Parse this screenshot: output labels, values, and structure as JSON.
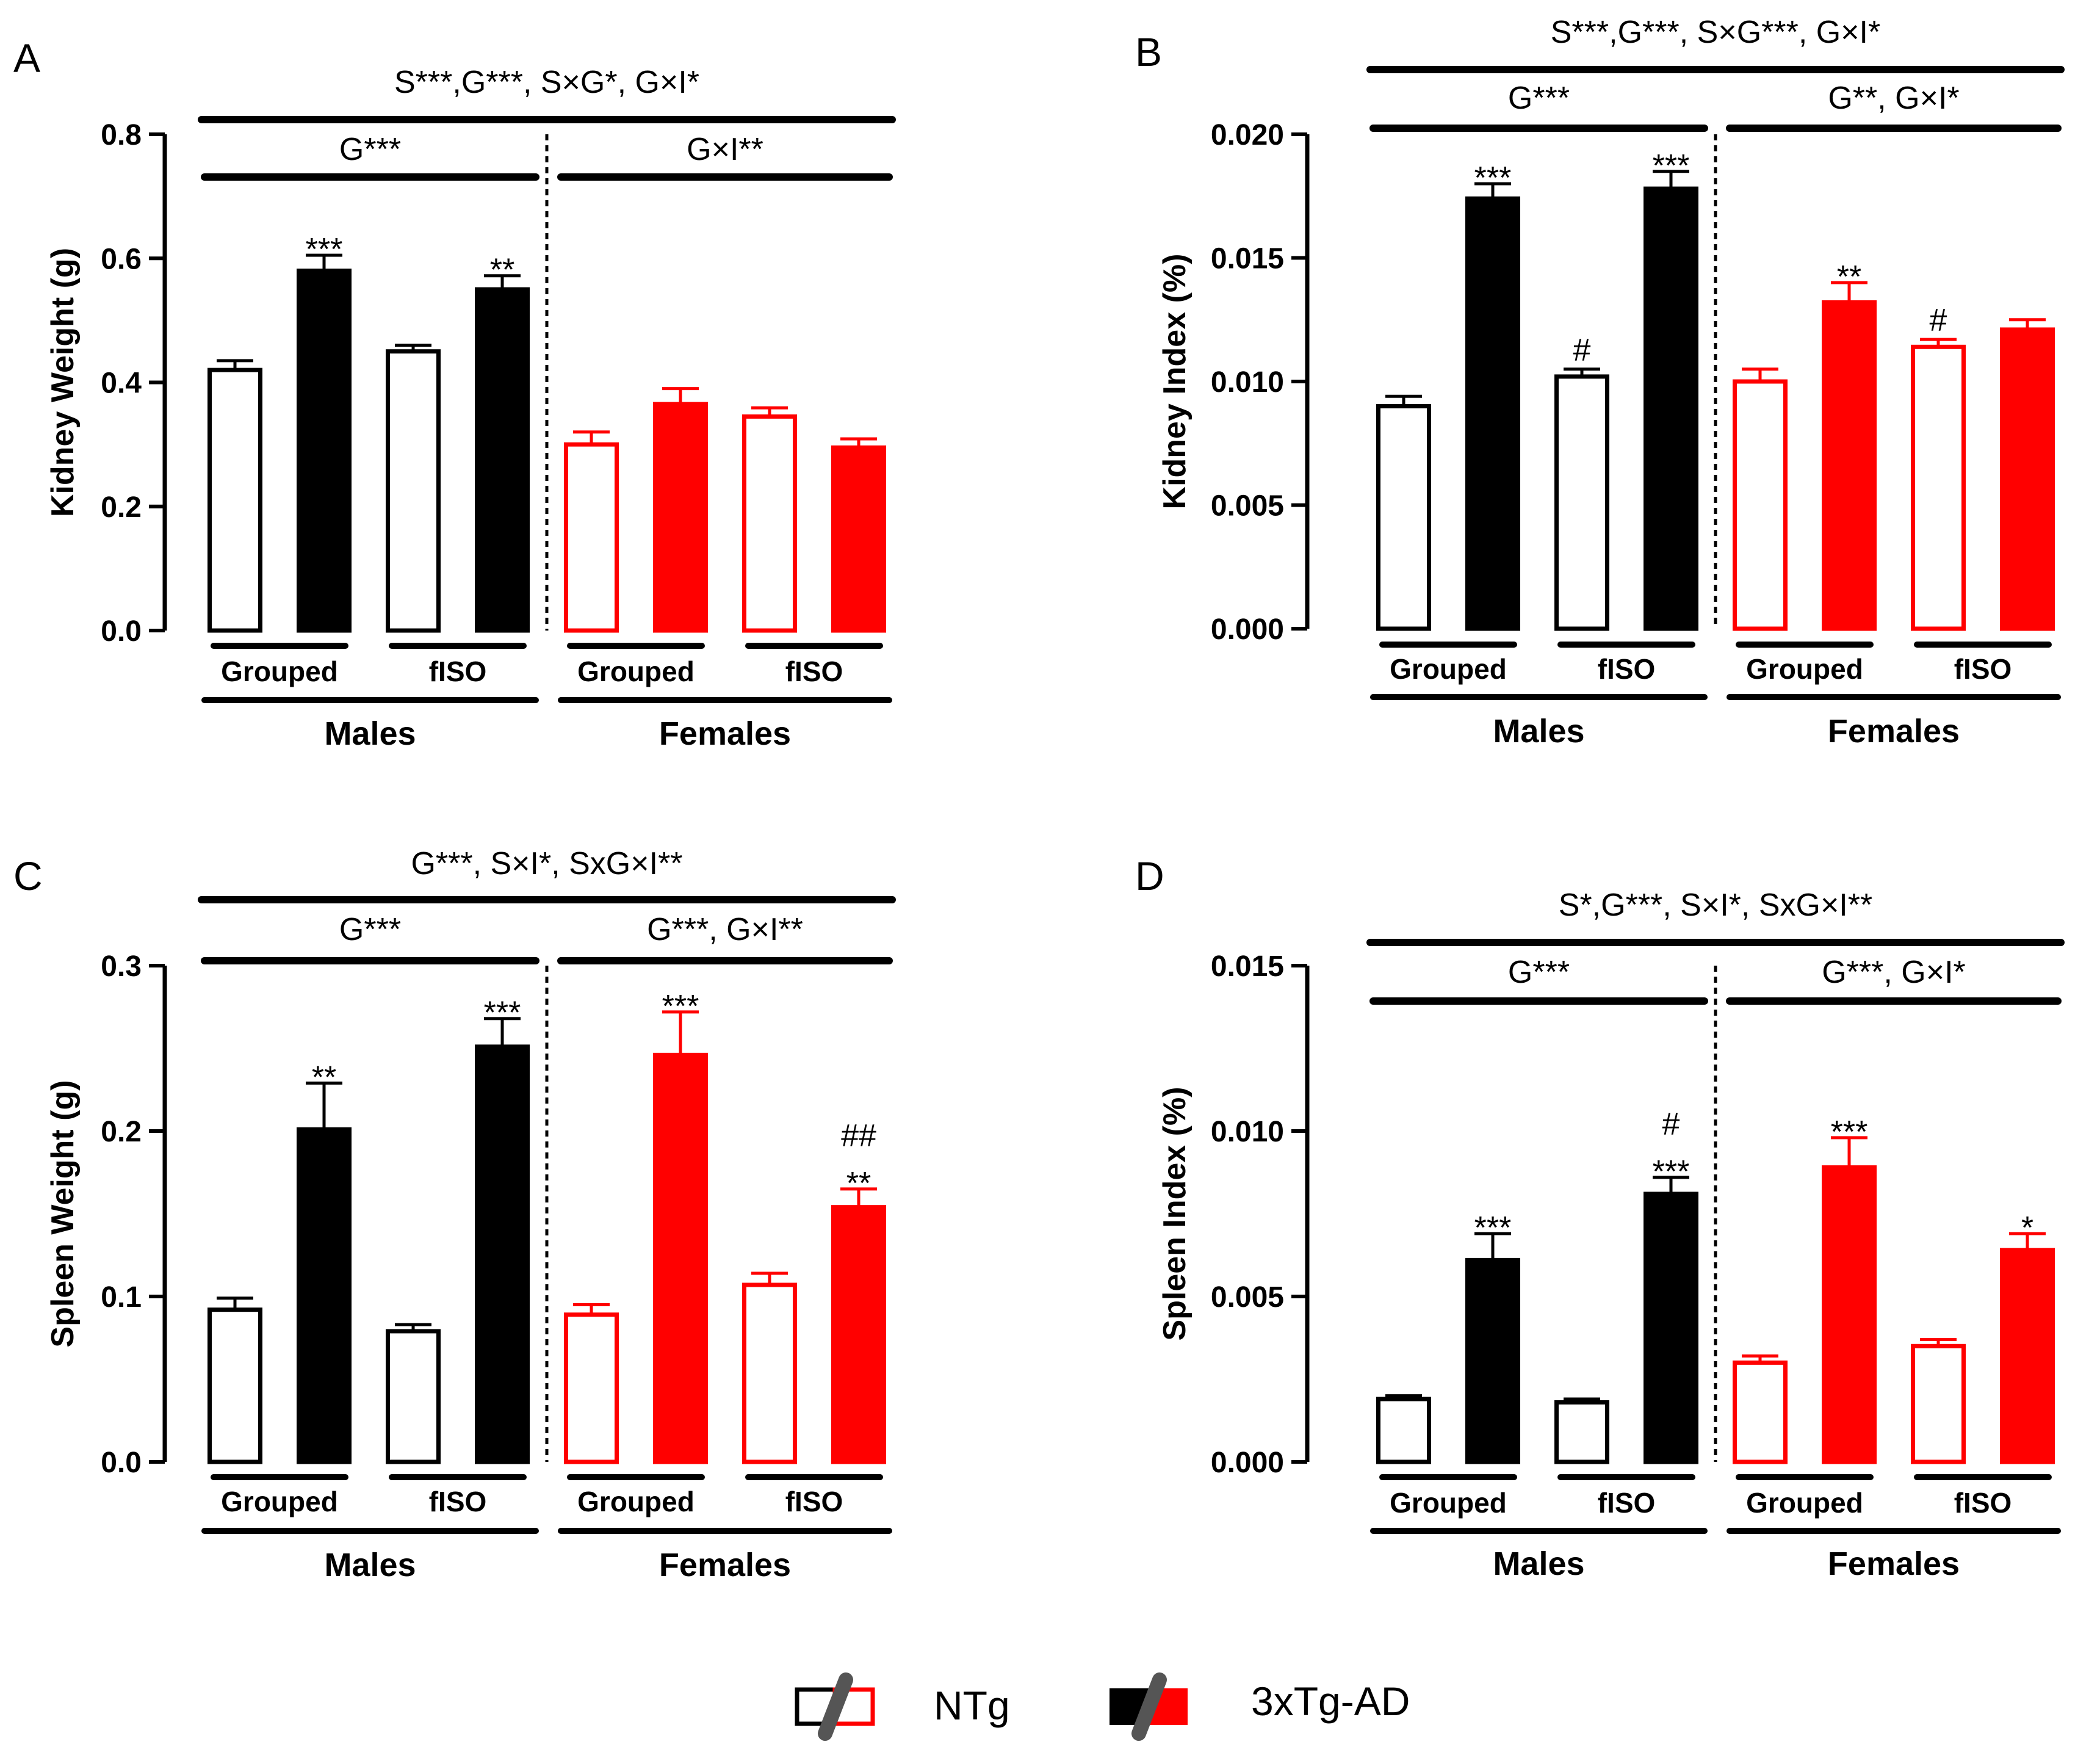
{
  "legend": {
    "items": [
      {
        "label": "NTg",
        "fill_male": "#ffffff",
        "stroke_male": "#000000",
        "fill_female": "#ffffff",
        "stroke_female": "#ff0000"
      },
      {
        "label": "3xTg-AD",
        "fill_male": "#000000",
        "stroke_male": "#000000",
        "fill_female": "#ff0000",
        "stroke_female": "#ff0000"
      }
    ]
  },
  "colors": {
    "male": "#000000",
    "female": "#ff0000",
    "ntg_fill": "#ffffff",
    "slash": "#555555"
  },
  "chart_data": [
    {
      "panel": "A",
      "type": "bar",
      "ylabel": "Kidney Weight (g)",
      "ylim": [
        0,
        0.8
      ],
      "yticks": [
        "0.0",
        "0.2",
        "0.4",
        "0.6",
        "0.8"
      ],
      "tick_values": [
        0,
        0.2,
        0.4,
        0.6,
        0.8
      ],
      "top_stats": "S***,G***, S×G*, G×I*",
      "sex_stats": {
        "male": "G***",
        "female": "G×I**"
      },
      "housing_labels": [
        "Grouped",
        "fISO",
        "Grouped",
        "fISO"
      ],
      "sex_labels": [
        "Males",
        "Females"
      ],
      "bars": [
        {
          "sex": "Males",
          "housing": "Grouped",
          "genotype": "NTg",
          "value": 0.42,
          "error": 0.015,
          "sig": []
        },
        {
          "sex": "Males",
          "housing": "Grouped",
          "genotype": "3xTg-AD",
          "value": 0.58,
          "error": 0.025,
          "sig": [
            "***"
          ]
        },
        {
          "sex": "Males",
          "housing": "fISO",
          "genotype": "NTg",
          "value": 0.45,
          "error": 0.01,
          "sig": []
        },
        {
          "sex": "Males",
          "housing": "fISO",
          "genotype": "3xTg-AD",
          "value": 0.55,
          "error": 0.022,
          "sig": [
            "**"
          ]
        },
        {
          "sex": "Females",
          "housing": "Grouped",
          "genotype": "NTg",
          "value": 0.3,
          "error": 0.02,
          "sig": []
        },
        {
          "sex": "Females",
          "housing": "Grouped",
          "genotype": "3xTg-AD",
          "value": 0.365,
          "error": 0.025,
          "sig": []
        },
        {
          "sex": "Females",
          "housing": "fISO",
          "genotype": "NTg",
          "value": 0.345,
          "error": 0.014,
          "sig": []
        },
        {
          "sex": "Females",
          "housing": "fISO",
          "genotype": "3xTg-AD",
          "value": 0.295,
          "error": 0.014,
          "sig": []
        }
      ]
    },
    {
      "panel": "B",
      "type": "bar",
      "ylabel": "Kidney Index (%)",
      "ylim": [
        0,
        0.02
      ],
      "yticks": [
        "0.000",
        "0.005",
        "0.010",
        "0.015",
        "0.020"
      ],
      "tick_values": [
        0,
        0.005,
        0.01,
        0.015,
        0.02
      ],
      "top_stats": "S***,G***, S×G***, G×I*",
      "sex_stats": {
        "male": "G***",
        "female": "G**, G×I*"
      },
      "housing_labels": [
        "Grouped",
        "fISO",
        "Grouped",
        "fISO"
      ],
      "sex_labels": [
        "Males",
        "Females"
      ],
      "bars": [
        {
          "sex": "Males",
          "housing": "Grouped",
          "genotype": "NTg",
          "value": 0.009,
          "error": 0.0004,
          "sig": []
        },
        {
          "sex": "Males",
          "housing": "Grouped",
          "genotype": "3xTg-AD",
          "value": 0.0174,
          "error": 0.0006,
          "sig": [
            "***"
          ]
        },
        {
          "sex": "Males",
          "housing": "fISO",
          "genotype": "NTg",
          "value": 0.0102,
          "error": 0.0003,
          "sig": [
            "#"
          ]
        },
        {
          "sex": "Males",
          "housing": "fISO",
          "genotype": "3xTg-AD",
          "value": 0.0178,
          "error": 0.0007,
          "sig": [
            "***"
          ]
        },
        {
          "sex": "Females",
          "housing": "Grouped",
          "genotype": "NTg",
          "value": 0.01,
          "error": 0.0005,
          "sig": []
        },
        {
          "sex": "Females",
          "housing": "Grouped",
          "genotype": "3xTg-AD",
          "value": 0.0132,
          "error": 0.0008,
          "sig": [
            "**"
          ]
        },
        {
          "sex": "Females",
          "housing": "fISO",
          "genotype": "NTg",
          "value": 0.0114,
          "error": 0.0003,
          "sig": [
            "#"
          ]
        },
        {
          "sex": "Females",
          "housing": "fISO",
          "genotype": "3xTg-AD",
          "value": 0.0121,
          "error": 0.0004,
          "sig": []
        }
      ]
    },
    {
      "panel": "C",
      "type": "bar",
      "ylabel": "Spleen Weight (g)",
      "ylim": [
        0,
        0.3
      ],
      "yticks": [
        "0.0",
        "0.1",
        "0.2",
        "0.3"
      ],
      "tick_values": [
        0,
        0.1,
        0.2,
        0.3
      ],
      "top_stats": "G***, S×I*, SxG×I**",
      "sex_stats": {
        "male": "G***",
        "female": "G***, G×I**"
      },
      "housing_labels": [
        "Grouped",
        "fISO",
        "Grouped",
        "fISO"
      ],
      "sex_labels": [
        "Males",
        "Females"
      ],
      "bars": [
        {
          "sex": "Males",
          "housing": "Grouped",
          "genotype": "NTg",
          "value": 0.092,
          "error": 0.007,
          "sig": []
        },
        {
          "sex": "Males",
          "housing": "Grouped",
          "genotype": "3xTg-AD",
          "value": 0.201,
          "error": 0.028,
          "sig": [
            "**"
          ]
        },
        {
          "sex": "Males",
          "housing": "fISO",
          "genotype": "NTg",
          "value": 0.079,
          "error": 0.004,
          "sig": []
        },
        {
          "sex": "Males",
          "housing": "fISO",
          "genotype": "3xTg-AD",
          "value": 0.251,
          "error": 0.017,
          "sig": [
            "***"
          ]
        },
        {
          "sex": "Females",
          "housing": "Grouped",
          "genotype": "NTg",
          "value": 0.089,
          "error": 0.006,
          "sig": []
        },
        {
          "sex": "Females",
          "housing": "Grouped",
          "genotype": "3xTg-AD",
          "value": 0.246,
          "error": 0.026,
          "sig": [
            "***"
          ]
        },
        {
          "sex": "Females",
          "housing": "fISO",
          "genotype": "NTg",
          "value": 0.107,
          "error": 0.007,
          "sig": []
        },
        {
          "sex": "Females",
          "housing": "fISO",
          "genotype": "3xTg-AD",
          "value": 0.154,
          "error": 0.011,
          "sig": [
            "**",
            "##"
          ]
        }
      ]
    },
    {
      "panel": "D",
      "type": "bar",
      "ylabel": "Spleen Index (%)",
      "ylim": [
        0,
        0.015
      ],
      "yticks": [
        "0.000",
        "0.005",
        "0.010",
        "0.015"
      ],
      "tick_values": [
        0,
        0.005,
        0.01,
        0.015
      ],
      "top_stats": "S*,G***, S×I*, SxG×I**",
      "sex_stats": {
        "male": "G***",
        "female": "G***, G×I*"
      },
      "housing_labels": [
        "Grouped",
        "fISO",
        "Grouped",
        "fISO"
      ],
      "sex_labels": [
        "Males",
        "Females"
      ],
      "bars": [
        {
          "sex": "Males",
          "housing": "Grouped",
          "genotype": "NTg",
          "value": 0.0019,
          "error": 0.0001,
          "sig": []
        },
        {
          "sex": "Males",
          "housing": "Grouped",
          "genotype": "3xTg-AD",
          "value": 0.0061,
          "error": 0.0008,
          "sig": [
            "***"
          ]
        },
        {
          "sex": "Males",
          "housing": "fISO",
          "genotype": "NTg",
          "value": 0.0018,
          "error": 0.0001,
          "sig": []
        },
        {
          "sex": "Males",
          "housing": "fISO",
          "genotype": "3xTg-AD",
          "value": 0.0081,
          "error": 0.0005,
          "sig": [
            "***",
            "#"
          ]
        },
        {
          "sex": "Females",
          "housing": "Grouped",
          "genotype": "NTg",
          "value": 0.003,
          "error": 0.0002,
          "sig": []
        },
        {
          "sex": "Females",
          "housing": "Grouped",
          "genotype": "3xTg-AD",
          "value": 0.0089,
          "error": 0.0009,
          "sig": [
            "***"
          ]
        },
        {
          "sex": "Females",
          "housing": "fISO",
          "genotype": "NTg",
          "value": 0.0035,
          "error": 0.0002,
          "sig": []
        },
        {
          "sex": "Females",
          "housing": "fISO",
          "genotype": "3xTg-AD",
          "value": 0.0064,
          "error": 0.0005,
          "sig": [
            "*"
          ]
        }
      ]
    }
  ]
}
